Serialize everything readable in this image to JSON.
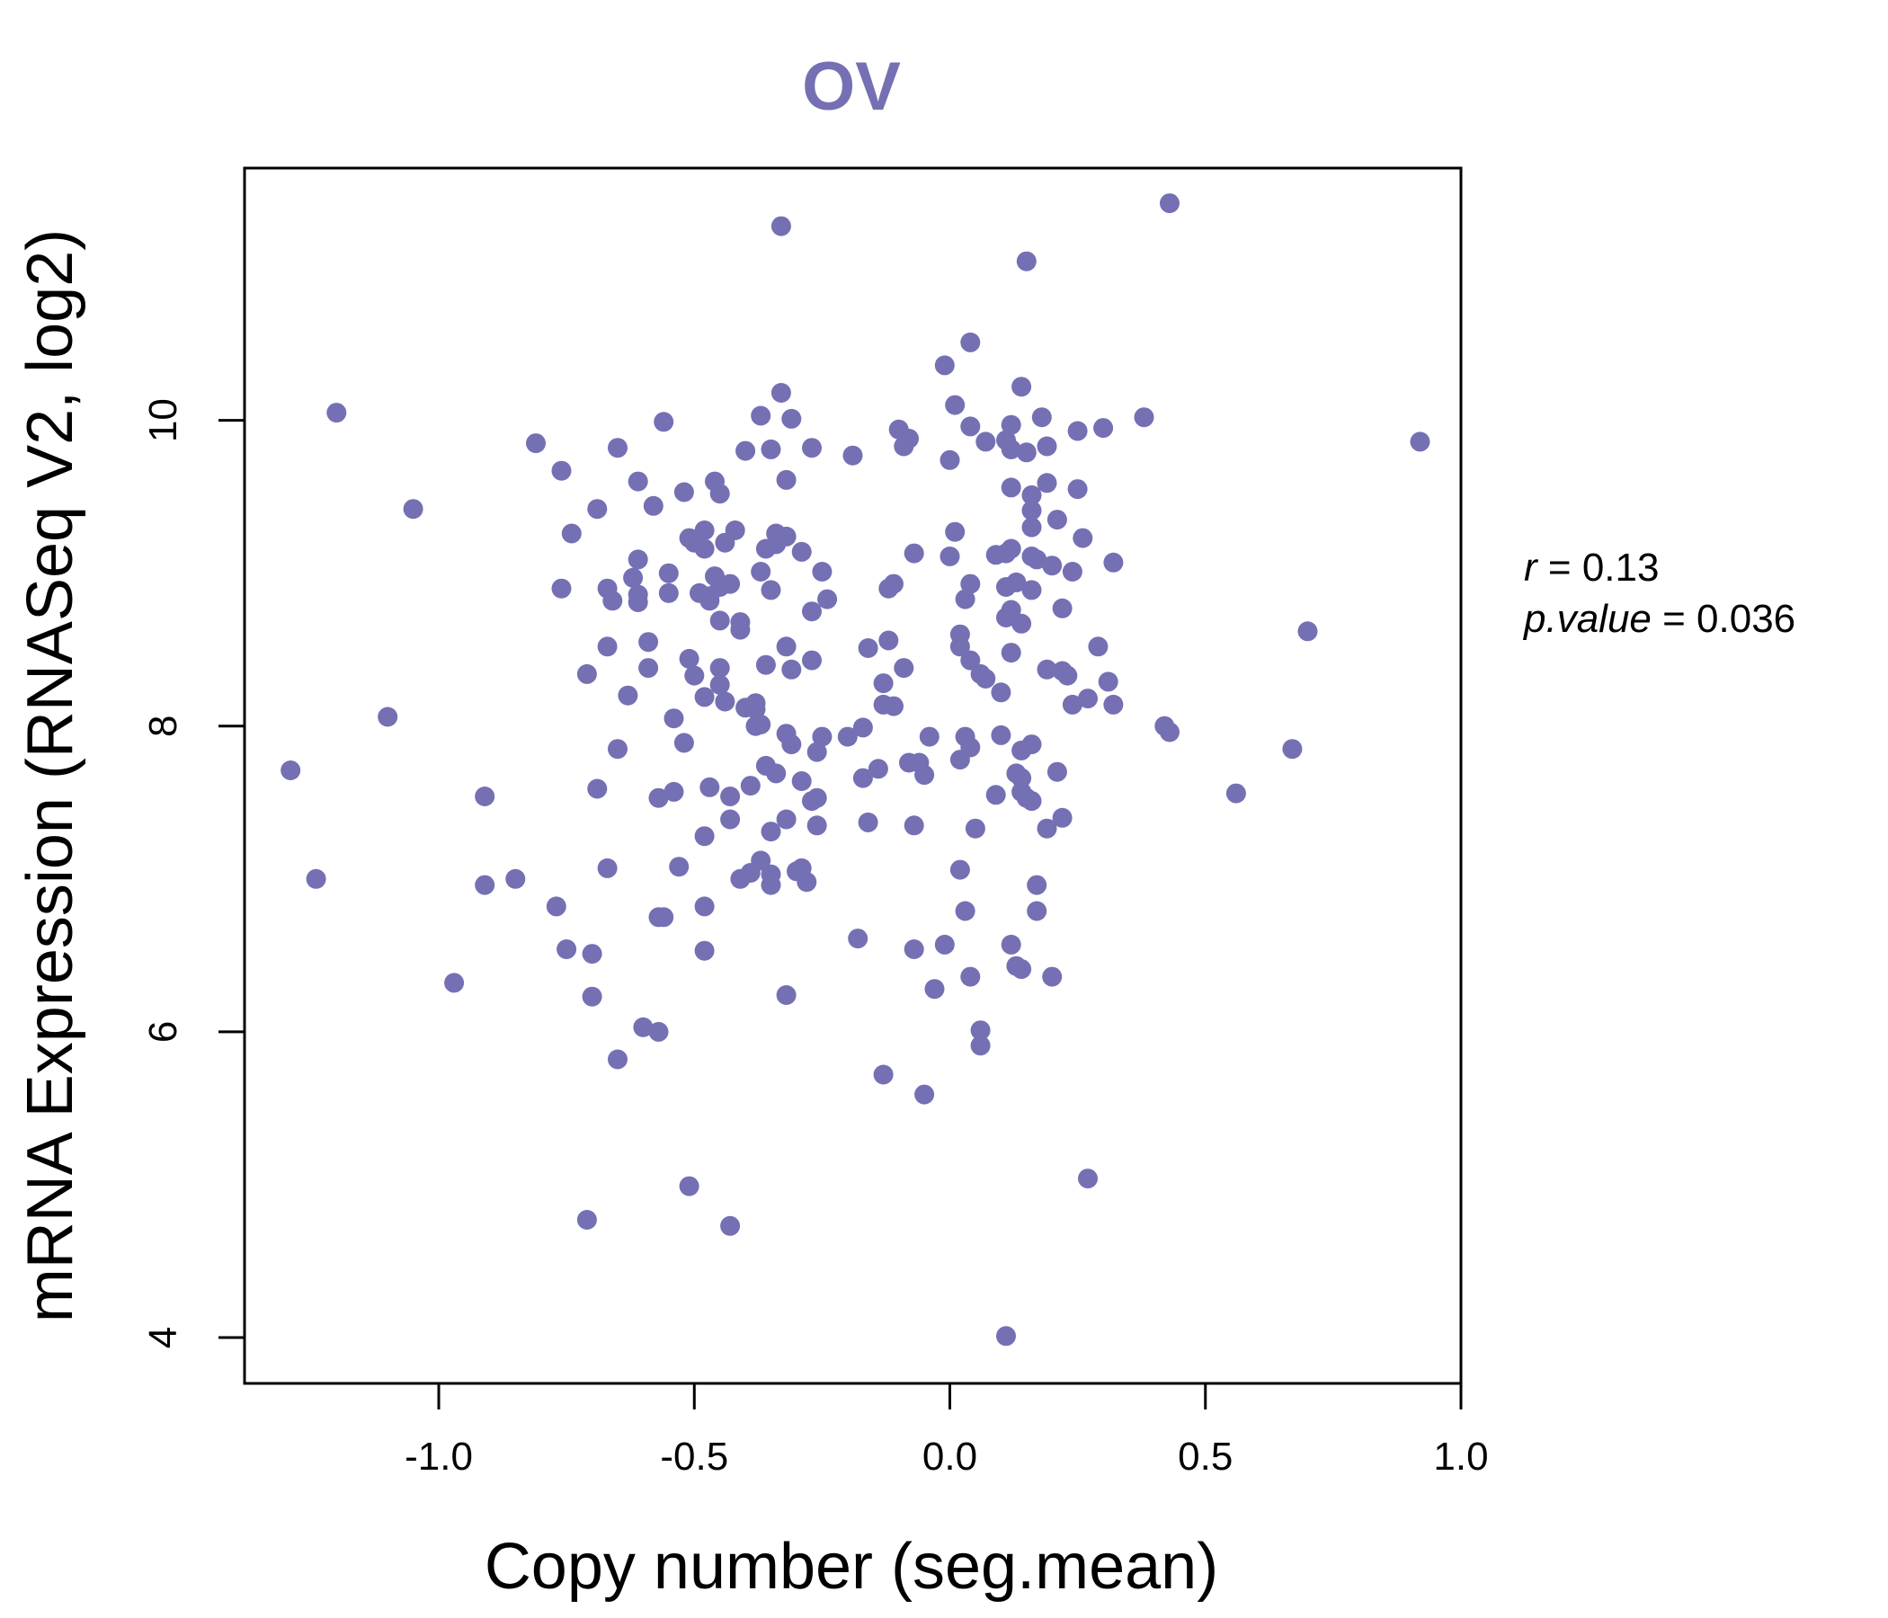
{
  "chart_data": {
    "type": "scatter",
    "title": "OV",
    "xlabel": "Copy number (seg.mean)",
    "ylabel": "mRNA Expression (RNASeq V2, log2)",
    "xlim": [
      -1.38,
      1.0
    ],
    "ylim": [
      3.7,
      11.65
    ],
    "xticks": [
      -1.0,
      -0.5,
      0.0,
      0.5,
      1.0
    ],
    "xtick_labels": [
      "-1.0",
      "-0.5",
      "0.0",
      "0.5",
      "1.0"
    ],
    "yticks": [
      4,
      6,
      8,
      10
    ],
    "ytick_labels": [
      "4",
      "6",
      "8",
      "10"
    ],
    "grid": false,
    "point_color": "#7570b3",
    "annotation": {
      "r_label": "r",
      "r_value": "0.13",
      "p_label": "p.value",
      "p_value": "0.036"
    },
    "points": [
      [
        -1.29,
        7.71
      ],
      [
        -1.24,
        7.0
      ],
      [
        -1.2,
        10.05
      ],
      [
        -1.1,
        8.06
      ],
      [
        -1.05,
        9.42
      ],
      [
        -0.97,
        6.32
      ],
      [
        -0.91,
        7.54
      ],
      [
        -0.91,
        6.96
      ],
      [
        -0.85,
        7.0
      ],
      [
        -0.81,
        9.85
      ],
      [
        -0.77,
        6.82
      ],
      [
        -0.76,
        9.67
      ],
      [
        -0.76,
        8.9
      ],
      [
        -0.75,
        6.54
      ],
      [
        -0.74,
        9.26
      ],
      [
        -0.71,
        8.34
      ],
      [
        -0.71,
        4.77
      ],
      [
        -0.7,
        6.51
      ],
      [
        -0.7,
        6.23
      ],
      [
        -0.69,
        9.42
      ],
      [
        -0.69,
        7.59
      ],
      [
        -0.67,
        7.07
      ],
      [
        -0.67,
        8.9
      ],
      [
        -0.67,
        8.52
      ],
      [
        -0.66,
        8.82
      ],
      [
        -0.65,
        7.85
      ],
      [
        -0.65,
        9.82
      ],
      [
        -0.65,
        5.82
      ],
      [
        -0.63,
        8.2
      ],
      [
        -0.62,
        8.97
      ],
      [
        -0.61,
        9.09
      ],
      [
        -0.61,
        8.86
      ],
      [
        -0.61,
        8.81
      ],
      [
        -0.61,
        9.6
      ],
      [
        -0.6,
        6.03
      ],
      [
        -0.59,
        8.38
      ],
      [
        -0.59,
        8.55
      ],
      [
        -0.58,
        9.44
      ],
      [
        -0.57,
        6.0
      ],
      [
        -0.57,
        7.53
      ],
      [
        -0.57,
        6.75
      ],
      [
        -0.56,
        9.99
      ],
      [
        -0.56,
        6.75
      ],
      [
        -0.55,
        8.87
      ],
      [
        -0.55,
        9.0
      ],
      [
        -0.54,
        8.05
      ],
      [
        -0.54,
        7.57
      ],
      [
        -0.53,
        7.08
      ],
      [
        -0.52,
        9.53
      ],
      [
        -0.52,
        7.89
      ],
      [
        -0.51,
        9.23
      ],
      [
        -0.51,
        4.99
      ],
      [
        -0.51,
        8.44
      ],
      [
        -0.5,
        8.33
      ],
      [
        -0.5,
        9.2
      ],
      [
        -0.49,
        8.87
      ],
      [
        -0.48,
        9.16
      ],
      [
        -0.48,
        9.28
      ],
      [
        -0.48,
        7.28
      ],
      [
        -0.48,
        8.19
      ],
      [
        -0.48,
        6.53
      ],
      [
        -0.48,
        6.82
      ],
      [
        -0.47,
        8.82
      ],
      [
        -0.47,
        8.85
      ],
      [
        -0.47,
        7.6
      ],
      [
        -0.46,
        9.6
      ],
      [
        -0.46,
        8.98
      ],
      [
        -0.45,
        9.52
      ],
      [
        -0.45,
        8.91
      ],
      [
        -0.45,
        8.69
      ],
      [
        -0.45,
        8.38
      ],
      [
        -0.45,
        8.27
      ],
      [
        -0.44,
        8.16
      ],
      [
        -0.44,
        9.2
      ],
      [
        -0.43,
        8.93
      ],
      [
        -0.43,
        7.39
      ],
      [
        -0.43,
        7.54
      ],
      [
        -0.43,
        4.73
      ],
      [
        -0.42,
        9.28
      ],
      [
        -0.41,
        8.68
      ],
      [
        -0.41,
        8.63
      ],
      [
        -0.41,
        7.0
      ],
      [
        -0.4,
        9.8
      ],
      [
        -0.4,
        8.12
      ],
      [
        -0.39,
        7.61
      ],
      [
        -0.39,
        7.04
      ],
      [
        -0.38,
        8.11
      ],
      [
        -0.38,
        8.0
      ],
      [
        -0.38,
        8.15
      ],
      [
        -0.37,
        7.12
      ],
      [
        -0.37,
        9.01
      ],
      [
        -0.37,
        10.03
      ],
      [
        -0.37,
        8.01
      ],
      [
        -0.36,
        7.74
      ],
      [
        -0.36,
        8.4
      ],
      [
        -0.36,
        9.16
      ],
      [
        -0.35,
        9.81
      ],
      [
        -0.35,
        7.03
      ],
      [
        -0.35,
        6.96
      ],
      [
        -0.35,
        7.31
      ],
      [
        -0.35,
        8.89
      ],
      [
        -0.34,
        9.26
      ],
      [
        -0.34,
        9.19
      ],
      [
        -0.34,
        7.69
      ],
      [
        -0.33,
        10.18
      ],
      [
        -0.33,
        11.27
      ],
      [
        -0.32,
        9.24
      ],
      [
        -0.32,
        9.61
      ],
      [
        -0.32,
        8.52
      ],
      [
        -0.32,
        7.39
      ],
      [
        -0.32,
        6.24
      ],
      [
        -0.32,
        7.95
      ],
      [
        -0.31,
        10.01
      ],
      [
        -0.31,
        8.37
      ],
      [
        -0.31,
        7.88
      ],
      [
        -0.3,
        7.05
      ],
      [
        -0.29,
        7.07
      ],
      [
        -0.29,
        7.64
      ],
      [
        -0.29,
        9.14
      ],
      [
        -0.28,
        6.98
      ],
      [
        -0.27,
        7.51
      ],
      [
        -0.27,
        8.43
      ],
      [
        -0.27,
        9.82
      ],
      [
        -0.27,
        8.75
      ],
      [
        -0.26,
        7.53
      ],
      [
        -0.26,
        7.83
      ],
      [
        -0.26,
        7.35
      ],
      [
        -0.25,
        9.01
      ],
      [
        -0.25,
        7.93
      ],
      [
        -0.24,
        8.83
      ],
      [
        -0.2,
        7.93
      ],
      [
        -0.19,
        9.77
      ],
      [
        -0.18,
        6.61
      ],
      [
        -0.17,
        7.99
      ],
      [
        -0.17,
        7.66
      ],
      [
        -0.16,
        7.37
      ],
      [
        -0.16,
        8.51
      ],
      [
        -0.14,
        7.72
      ],
      [
        -0.13,
        8.28
      ],
      [
        -0.13,
        8.14
      ],
      [
        -0.13,
        5.72
      ],
      [
        -0.12,
        8.9
      ],
      [
        -0.12,
        8.56
      ],
      [
        -0.11,
        8.93
      ],
      [
        -0.11,
        8.13
      ],
      [
        -0.1,
        9.94
      ],
      [
        -0.09,
        9.83
      ],
      [
        -0.09,
        8.38
      ],
      [
        -0.08,
        7.76
      ],
      [
        -0.08,
        9.88
      ],
      [
        -0.07,
        9.13
      ],
      [
        -0.07,
        7.35
      ],
      [
        -0.07,
        6.54
      ],
      [
        -0.06,
        7.76
      ],
      [
        -0.05,
        5.59
      ],
      [
        -0.05,
        7.68
      ],
      [
        -0.04,
        7.93
      ],
      [
        -0.03,
        6.28
      ],
      [
        -0.01,
        10.36
      ],
      [
        -0.01,
        6.57
      ],
      [
        0.0,
        9.11
      ],
      [
        0.0,
        9.74
      ],
      [
        0.01,
        10.1
      ],
      [
        0.01,
        9.27
      ],
      [
        0.02,
        8.6
      ],
      [
        0.02,
        7.78
      ],
      [
        0.02,
        7.06
      ],
      [
        0.02,
        8.52
      ],
      [
        0.03,
        6.79
      ],
      [
        0.03,
        7.93
      ],
      [
        0.03,
        8.83
      ],
      [
        0.04,
        10.51
      ],
      [
        0.04,
        9.96
      ],
      [
        0.04,
        8.93
      ],
      [
        0.04,
        7.86
      ],
      [
        0.04,
        8.43
      ],
      [
        0.04,
        6.36
      ],
      [
        0.05,
        7.33
      ],
      [
        0.06,
        8.34
      ],
      [
        0.06,
        6.01
      ],
      [
        0.06,
        5.91
      ],
      [
        0.07,
        9.86
      ],
      [
        0.07,
        8.31
      ],
      [
        0.09,
        9.12
      ],
      [
        0.09,
        7.55
      ],
      [
        0.1,
        7.94
      ],
      [
        0.1,
        8.22
      ],
      [
        0.11,
        8.91
      ],
      [
        0.11,
        8.71
      ],
      [
        0.11,
        4.01
      ],
      [
        0.11,
        9.13
      ],
      [
        0.11,
        9.87
      ],
      [
        0.12,
        9.97
      ],
      [
        0.12,
        9.81
      ],
      [
        0.12,
        9.56
      ],
      [
        0.12,
        9.16
      ],
      [
        0.12,
        8.48
      ],
      [
        0.12,
        8.76
      ],
      [
        0.12,
        6.57
      ],
      [
        0.13,
        8.94
      ],
      [
        0.13,
        7.69
      ],
      [
        0.13,
        6.43
      ],
      [
        0.14,
        10.22
      ],
      [
        0.14,
        8.67
      ],
      [
        0.14,
        7.84
      ],
      [
        0.14,
        7.66
      ],
      [
        0.14,
        7.57
      ],
      [
        0.14,
        6.41
      ],
      [
        0.15,
        11.04
      ],
      [
        0.15,
        9.79
      ],
      [
        0.15,
        7.53
      ],
      [
        0.16,
        9.51
      ],
      [
        0.16,
        9.41
      ],
      [
        0.16,
        9.3
      ],
      [
        0.16,
        9.11
      ],
      [
        0.16,
        8.89
      ],
      [
        0.16,
        7.88
      ],
      [
        0.16,
        7.51
      ],
      [
        0.17,
        6.96
      ],
      [
        0.17,
        6.79
      ],
      [
        0.17,
        9.09
      ],
      [
        0.18,
        10.02
      ],
      [
        0.19,
        9.83
      ],
      [
        0.19,
        9.59
      ],
      [
        0.19,
        8.37
      ],
      [
        0.19,
        7.33
      ],
      [
        0.2,
        9.05
      ],
      [
        0.2,
        6.36
      ],
      [
        0.21,
        9.35
      ],
      [
        0.21,
        7.7
      ],
      [
        0.22,
        8.36
      ],
      [
        0.22,
        7.4
      ],
      [
        0.22,
        8.77
      ],
      [
        0.23,
        8.33
      ],
      [
        0.24,
        8.14
      ],
      [
        0.24,
        9.01
      ],
      [
        0.25,
        9.55
      ],
      [
        0.25,
        9.93
      ],
      [
        0.26,
        9.23
      ],
      [
        0.27,
        8.18
      ],
      [
        0.27,
        5.04
      ],
      [
        0.29,
        8.52
      ],
      [
        0.3,
        9.95
      ],
      [
        0.31,
        8.29
      ],
      [
        0.32,
        9.07
      ],
      [
        0.32,
        8.14
      ],
      [
        0.38,
        10.02
      ],
      [
        0.42,
        8.0
      ],
      [
        0.43,
        7.96
      ],
      [
        0.43,
        11.42
      ],
      [
        0.56,
        7.56
      ],
      [
        0.67,
        7.85
      ],
      [
        0.7,
        8.62
      ],
      [
        0.92,
        9.86
      ]
    ]
  }
}
